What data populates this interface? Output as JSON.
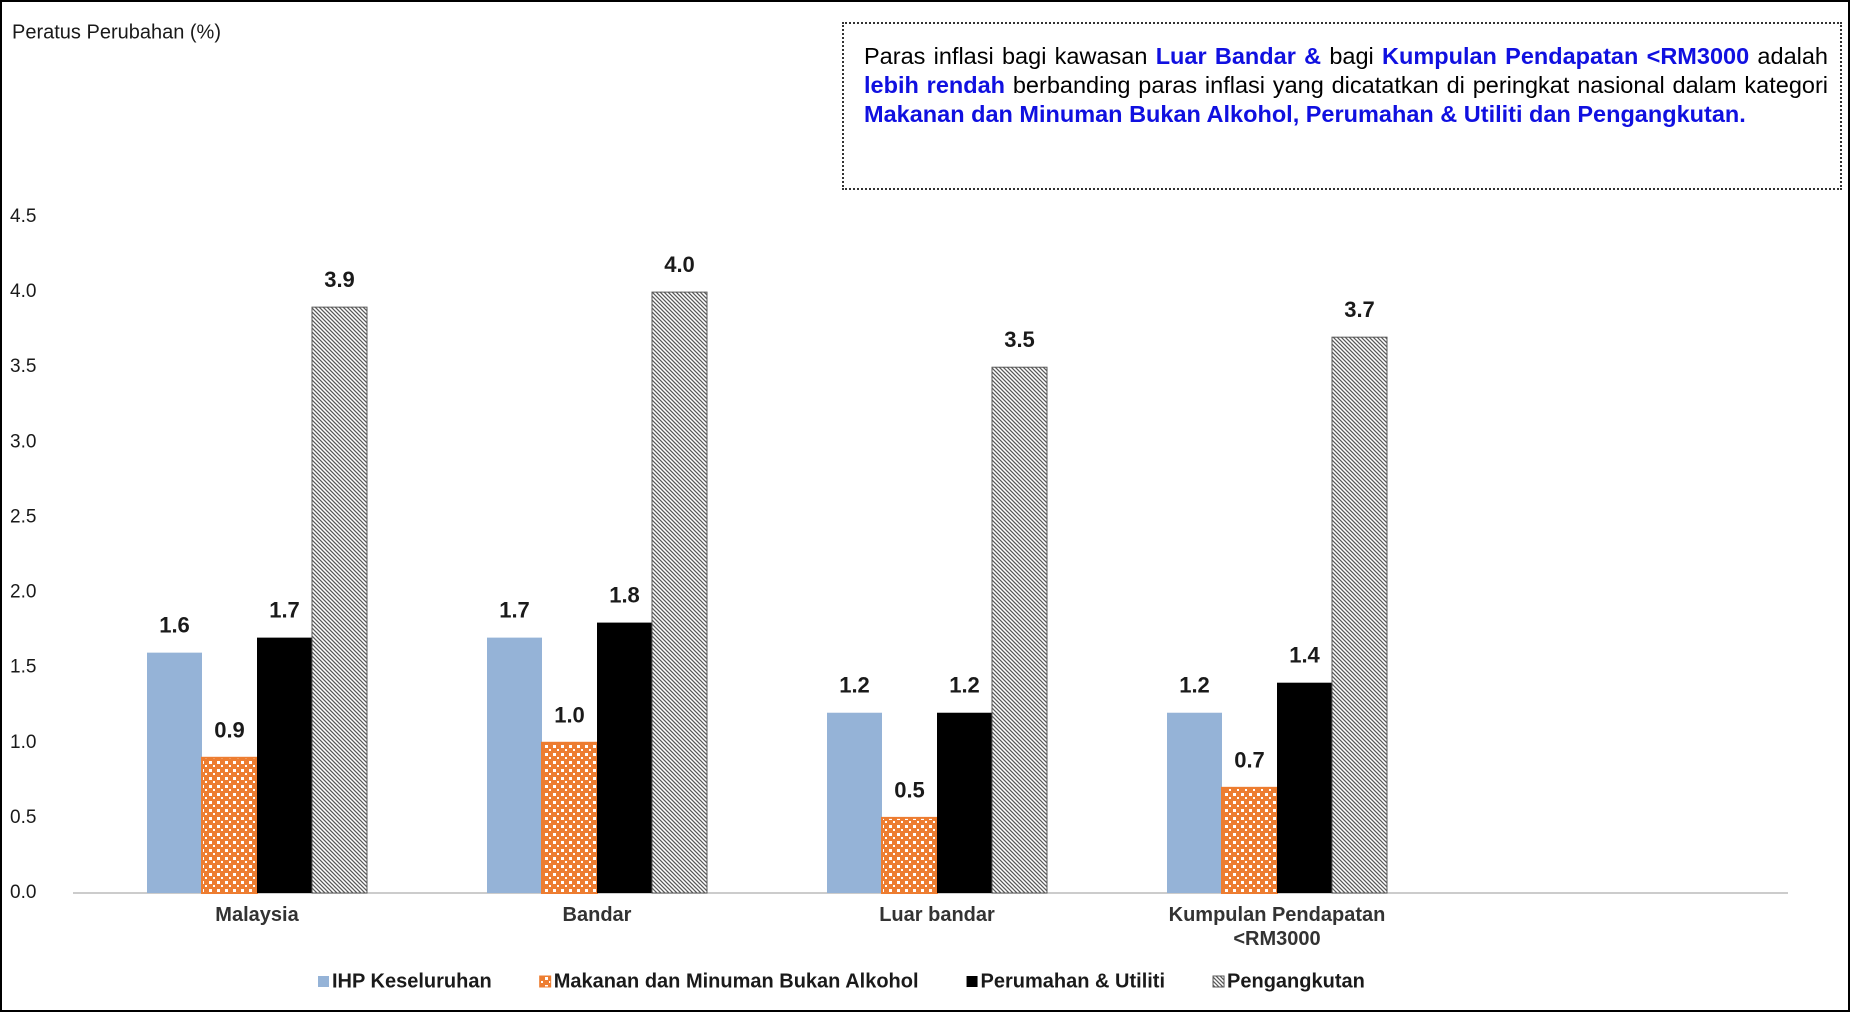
{
  "chart_data": {
    "type": "bar",
    "y_axis_label": "Peratus Perubahan (%)",
    "annotation": [
      "Paras inflasi bagi kawasan ",
      "Luar Bandar &",
      " bagi ",
      "Kumpulan Pendapatan <RM3000",
      " adalah ",
      "lebih rendah",
      " berbanding paras inflasi yang dicatatkan di peringkat nasional dalam kategori ",
      "Makanan dan Minuman Bukan Alkohol, Perumahan & Utiliti dan Pengangkutan."
    ],
    "categories": [
      "Malaysia",
      "Bandar",
      "Luar bandar",
      "Kumpulan Pendapatan <RM3000"
    ],
    "series": [
      {
        "name": "IHP Keseluruhan",
        "color": "#95b3d7",
        "values": [
          1.6,
          1.7,
          1.2,
          1.2
        ],
        "value_labels": [
          "1.6",
          "1.7",
          "1.2",
          "1.2"
        ]
      },
      {
        "name": "Makanan dan Minuman Bukan Alkohol",
        "color": "#ed7d31",
        "values": [
          0.9,
          1.0,
          0.5,
          0.7
        ],
        "value_labels": [
          "0.9",
          "1.0",
          "0.5",
          "0.7"
        ]
      },
      {
        "name": "Perumahan & Utiliti",
        "color": "#000000",
        "values": [
          1.7,
          1.8,
          1.2,
          1.4
        ],
        "value_labels": [
          "1.7",
          "1.8",
          "1.2",
          "1.4"
        ]
      },
      {
        "name": "Pengangkutan",
        "color": "#595959",
        "values": [
          3.9,
          4.0,
          3.5,
          3.7
        ],
        "value_labels": [
          "3.9",
          "4.0",
          "3.5",
          "3.7"
        ]
      }
    ],
    "ylim": [
      0,
      4.5
    ],
    "yticks": [
      {
        "value": 0,
        "label": "0.0"
      },
      0.5,
      {
        "value": 1,
        "label": "1.0"
      },
      1.5,
      {
        "value": 2,
        "label": "2.0"
      },
      2.5,
      {
        "value": 3,
        "label": "3.0"
      },
      3.5,
      {
        "value": 4,
        "label": "4.0"
      },
      4.5
    ],
    "grid": false,
    "legend": "bottom"
  }
}
